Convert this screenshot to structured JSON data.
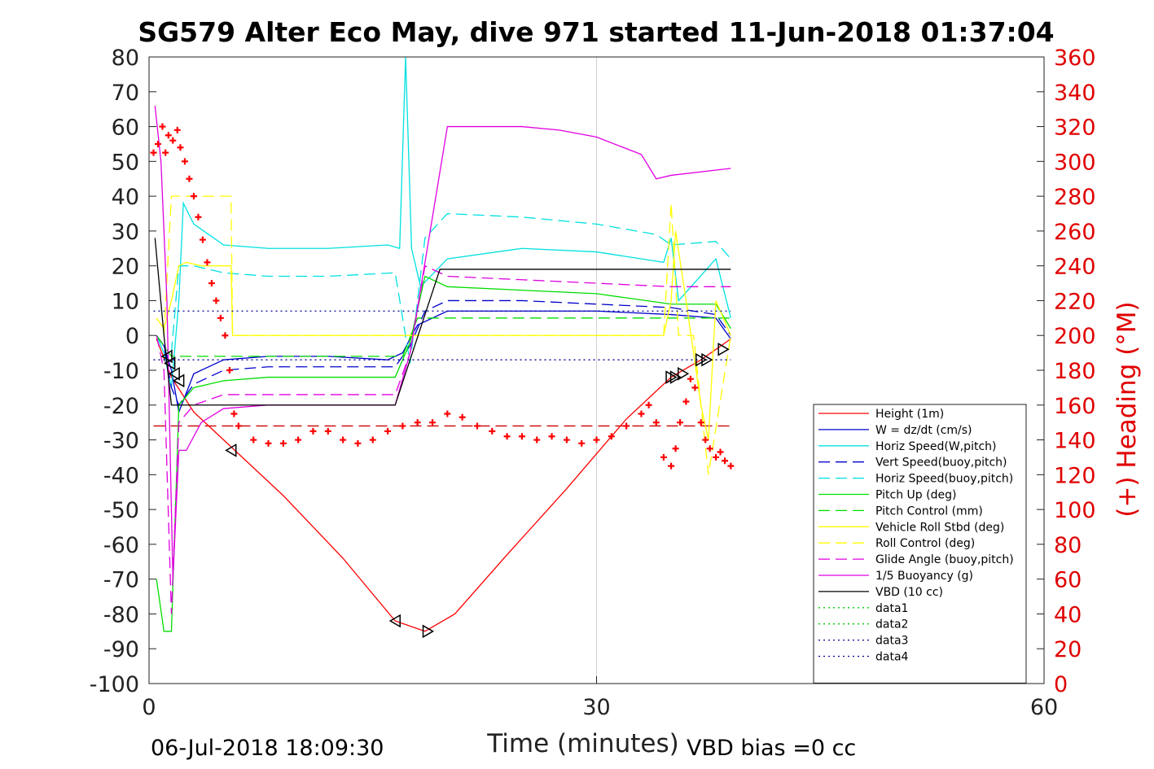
{
  "chart_data": {
    "type": "line",
    "title": "SG579 Alter Eco May, dive 971 started 11-Jun-2018 01:37:04",
    "xlabel": "Time (minutes)",
    "ylabel": "",
    "y2label": "(+) Heading (°M)",
    "xlim": [
      0,
      60
    ],
    "ylim": [
      -100,
      80
    ],
    "y2lim": [
      0,
      360
    ],
    "x_ticks": [
      "0",
      "30",
      "60"
    ],
    "y_ticks": [
      "80",
      "70",
      "60",
      "50",
      "40",
      "30",
      "20",
      "10",
      "0",
      "-10",
      "-20",
      "-30",
      "-40",
      "-50",
      "-60",
      "-70",
      "-80",
      "-90",
      "-100"
    ],
    "y2_ticks": [
      "360",
      "340",
      "320",
      "300",
      "280",
      "260",
      "240",
      "220",
      "200",
      "180",
      "160",
      "140",
      "120",
      "100",
      "80",
      "60",
      "40",
      "20",
      "0"
    ],
    "grid": "x-only",
    "legend_placement": "lower-right",
    "footer_left": "06-Jul-2018 18:09:30",
    "footer_right": "VBD bias =0 cc",
    "series": [
      {
        "name": "Height (1m)",
        "color": "#ff0000",
        "style": "solid",
        "x": [
          0.5,
          1.5,
          3.0,
          5.5,
          9.0,
          13.0,
          16.5,
          18.5,
          20.5,
          24.0,
          28.0,
          32.0,
          35.0,
          37.0,
          39.0
        ],
        "y": [
          -1,
          -12,
          -22,
          -32,
          -46,
          -64,
          -82,
          -85,
          -80,
          -63,
          -44,
          -24,
          -12,
          -7,
          -1
        ]
      },
      {
        "name": "W = dz/dt (cm/s)",
        "color": "#0000cc",
        "style": "solid",
        "x": [
          0.5,
          1.0,
          1.5,
          2.0,
          3.0,
          5.0,
          8.0,
          12.0,
          16.0,
          17.0,
          17.5,
          18.0,
          20.0,
          25.0,
          30.0,
          35.0,
          38.0,
          39.0
        ],
        "y": [
          0,
          -3,
          -10,
          -22,
          -11,
          -7,
          -6,
          -6,
          -7,
          -5,
          -1,
          3,
          7,
          7,
          7,
          6,
          5,
          -1
        ]
      },
      {
        "name": "Horiz Speed(W,pitch)",
        "color": "#00e0e0",
        "style": "solid",
        "x": [
          0.5,
          1.0,
          1.5,
          2.0,
          2.3,
          3.0,
          5.0,
          8.0,
          12.0,
          16.0,
          16.8,
          17.2,
          17.6,
          18.2,
          20.0,
          25.0,
          30.0,
          34.5,
          35.0,
          35.5,
          38.0,
          39.0
        ],
        "y": [
          0,
          -5,
          -15,
          10,
          38,
          32,
          26,
          25,
          25,
          26,
          25,
          80,
          25,
          14,
          22,
          25,
          24,
          21,
          28,
          10,
          22,
          5
        ]
      },
      {
        "name": "Vert Speed(buoy,pitch)",
        "color": "#0000cc",
        "style": "dash",
        "x": [
          0.5,
          1.0,
          1.5,
          2.0,
          3.0,
          5.0,
          8.0,
          12.0,
          16.5,
          17.5,
          18.5,
          20.0,
          25.0,
          30.0,
          35.0,
          38.0,
          39.0
        ],
        "y": [
          0,
          -3,
          -15,
          -20,
          -14,
          -10,
          -9,
          -9,
          -9,
          -3,
          7,
          10,
          10,
          9,
          8,
          6,
          0
        ]
      },
      {
        "name": "Horiz Speed(buoy,pitch)",
        "color": "#00e0e0",
        "style": "dash",
        "x": [
          1.5,
          2.0,
          3.0,
          5.0,
          8.0,
          12.0,
          16.5,
          17.5,
          18.5,
          20.0,
          25.0,
          30.0,
          34.0,
          35.0,
          38.0,
          39.0
        ],
        "y": [
          -5,
          20,
          20,
          18,
          17,
          17,
          18,
          -8,
          28,
          35,
          34,
          32,
          29,
          26,
          27,
          22
        ]
      },
      {
        "name": "Pitch Up (deg)",
        "color": "#00dd00",
        "style": "solid",
        "x": [
          0.5,
          1.0,
          1.5,
          2.0,
          3.0,
          5.0,
          8.0,
          12.0,
          16.5,
          17.5,
          18.5,
          20.0,
          25.0,
          30.0,
          35.0,
          38.0,
          39.0
        ],
        "y": [
          -70,
          -85,
          -85,
          -20,
          -15,
          -13,
          -12,
          -12,
          -12,
          -2,
          17,
          14,
          13,
          12,
          9,
          9,
          2
        ]
      },
      {
        "name": "Pitch Control (mm)",
        "color": "#00dd00",
        "style": "dash",
        "x": [
          0.5,
          1.5,
          2.0,
          3.0,
          8.0,
          16.5,
          17.0,
          18.0,
          20.0,
          30.0,
          39.0
        ],
        "y": [
          0,
          -6,
          -6,
          -6,
          -6,
          -6,
          -6,
          5,
          5,
          5,
          5
        ]
      },
      {
        "name": "Vehicle Roll Stbd (deg)",
        "color": "#ffff00",
        "style": "solid",
        "x": [
          0.5,
          1.0,
          1.5,
          2.0,
          2.5,
          3.5,
          5.5,
          5.6,
          10.0,
          16.5,
          17.5,
          20.0,
          30.0,
          34.5,
          35.0,
          35.3,
          36.0,
          37.0,
          37.5,
          38.0,
          39.0
        ],
        "y": [
          5,
          2,
          10,
          20,
          21,
          20,
          20,
          0,
          0,
          0,
          0,
          0,
          0,
          0,
          10,
          30,
          10,
          -20,
          -30,
          10,
          0
        ]
      },
      {
        "name": "Roll Control (deg)",
        "color": "#ffff00",
        "style": "dash",
        "x": [
          1.0,
          1.5,
          2.0,
          5.5,
          5.6,
          16.5,
          34.5,
          35.0,
          35.5,
          36.5,
          37.5,
          39.0
        ],
        "y": [
          0,
          40,
          40,
          40,
          0,
          0,
          0,
          38,
          0,
          0,
          -40,
          0
        ]
      },
      {
        "name": "Glide Angle (buoy,pitch)",
        "color": "#e000e0",
        "style": "dash",
        "x": [
          0.5,
          1.0,
          1.5,
          2.0,
          3.0,
          5.0,
          8.0,
          12.0,
          16.5,
          17.5,
          18.5,
          20.0,
          25.0,
          30.0,
          35.0,
          39.0
        ],
        "y": [
          0,
          -10,
          -80,
          -25,
          -20,
          -17,
          -17,
          -17,
          -17,
          -5,
          20,
          17,
          16,
          15,
          14,
          14
        ]
      },
      {
        "name": "1/5 Buoyancy (g)",
        "color": "#e000e0",
        "style": "solid",
        "x": [
          0.4,
          0.8,
          1.2,
          1.6,
          2.0,
          2.5,
          3.5,
          5.0,
          8.0,
          12.0,
          16.5,
          17.5,
          20.0,
          25.0,
          27.5,
          30.0,
          33.0,
          34.0,
          35.0,
          39.0
        ],
        "y": [
          66,
          50,
          10,
          -70,
          -33,
          -33,
          -25,
          -21,
          -20,
          -20,
          -20,
          -5,
          60,
          60,
          59,
          57,
          52,
          45,
          46,
          48
        ]
      },
      {
        "name": "VBD (10 cc)",
        "color": "#000000",
        "style": "solid",
        "x": [
          0.4,
          1.0,
          1.5,
          2.0,
          16.5,
          19.5,
          20.5,
          39.0
        ],
        "y": [
          28,
          0,
          -20,
          -20,
          -20,
          19,
          19,
          19
        ]
      },
      {
        "name": "data1",
        "color": "#00cc00",
        "style": "dot",
        "x": [],
        "y": []
      },
      {
        "name": "data2",
        "color": "#00cc00",
        "style": "dot",
        "x": [],
        "y": []
      },
      {
        "name": "data3",
        "color": "#000099",
        "style": "dot",
        "x": [
          0.3,
          39.0
        ],
        "y": [
          7,
          7
        ]
      },
      {
        "name": "data4",
        "color": "#000099",
        "style": "dot",
        "x": [
          0.3,
          39.0
        ],
        "y": [
          -7,
          -7
        ]
      }
    ],
    "reference_line": {
      "color": "#cc0000",
      "style": "dash",
      "x": [
        0.3,
        39.0
      ],
      "y": [
        -26,
        -26
      ]
    },
    "heading_points": {
      "color": "#ff0000",
      "marker": "+",
      "axis": "right",
      "x": [
        0.3,
        0.6,
        0.9,
        1.1,
        1.3,
        1.6,
        1.9,
        2.1,
        2.4,
        2.7,
        3.0,
        3.3,
        3.6,
        3.9,
        4.2,
        4.5,
        4.8,
        5.1,
        5.4,
        5.7,
        6.0,
        7.0,
        8.0,
        9.0,
        10.0,
        11.0,
        12.0,
        13.0,
        14.0,
        15.0,
        16.0,
        17.0,
        18.0,
        19.0,
        20.0,
        21.0,
        22.0,
        23.0,
        24.0,
        25.0,
        26.0,
        27.0,
        28.0,
        29.0,
        30.0,
        31.0,
        32.0,
        33.0,
        33.5,
        34.0,
        34.5,
        35.0,
        35.3,
        35.6,
        36.0,
        36.3,
        36.6,
        37.0,
        37.3,
        37.6,
        38.0,
        38.3,
        38.6,
        39.0
      ],
      "y": [
        305,
        310,
        320,
        305,
        315,
        312,
        318,
        308,
        300,
        290,
        280,
        268,
        255,
        242,
        230,
        220,
        210,
        200,
        180,
        155,
        148,
        140,
        138,
        138,
        140,
        145,
        145,
        140,
        138,
        140,
        145,
        148,
        150,
        150,
        155,
        153,
        148,
        145,
        142,
        142,
        140,
        142,
        140,
        138,
        140,
        142,
        148,
        155,
        160,
        150,
        130,
        125,
        135,
        150,
        162,
        175,
        170,
        150,
        140,
        135,
        130,
        133,
        128,
        125
      ]
    },
    "triangle_markers": {
      "color": "#000000",
      "marker": "triangle",
      "axis": "left",
      "x": [
        1.2,
        1.4,
        1.7,
        2.0,
        5.5,
        16.5,
        18.7,
        35.0,
        35.3,
        35.8,
        37.0,
        37.4,
        38.5
      ],
      "y": [
        -6,
        -8,
        -11,
        -13,
        -33,
        -82,
        -85,
        -12,
        -12,
        -11,
        -7,
        -7,
        -4
      ]
    }
  }
}
